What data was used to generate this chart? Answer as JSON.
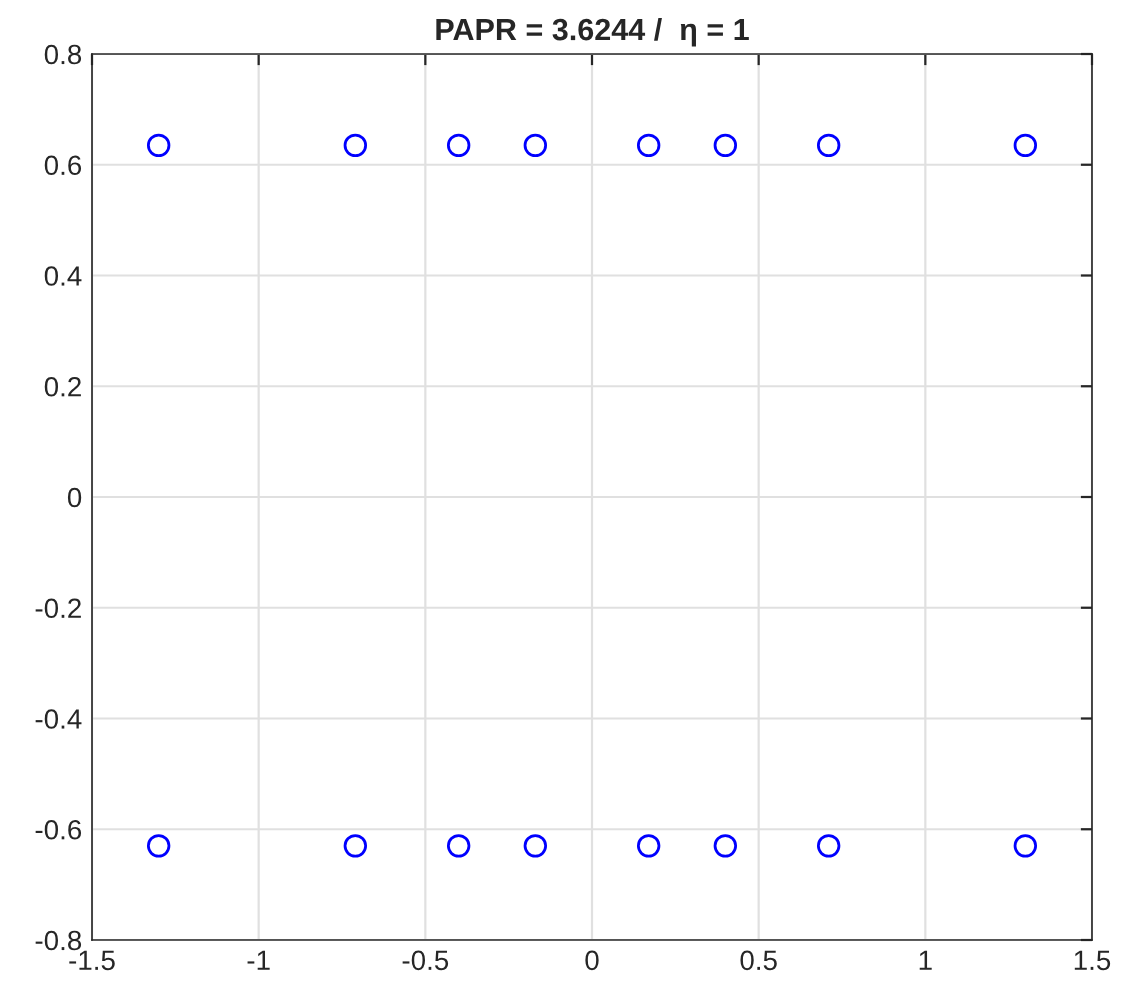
{
  "chart_data": {
    "type": "scatter",
    "title": "PAPR = 3.6244 /  η = 1",
    "x": [
      -1.3,
      -0.71,
      -0.4,
      -0.17,
      0.17,
      0.4,
      0.71,
      1.3,
      -1.3,
      -0.71,
      -0.4,
      -0.17,
      0.17,
      0.4,
      0.71,
      1.3
    ],
    "values": [
      0.635,
      0.635,
      0.635,
      0.635,
      0.635,
      0.635,
      0.635,
      0.635,
      -0.63,
      -0.63,
      -0.63,
      -0.63,
      -0.63,
      -0.63,
      -0.63,
      -0.63
    ],
    "color": "#0000ff",
    "marker": "circle",
    "grid": true,
    "xlim": [
      -1.5,
      1.5
    ],
    "xticks": [
      -1.5,
      -1,
      -0.5,
      0,
      0.5,
      1,
      1.5
    ],
    "ylim": [
      -0.8,
      0.8
    ],
    "yticks": [
      -0.8,
      -0.6,
      -0.4,
      -0.2,
      0,
      0.2,
      0.4,
      0.6,
      0.8
    ]
  }
}
